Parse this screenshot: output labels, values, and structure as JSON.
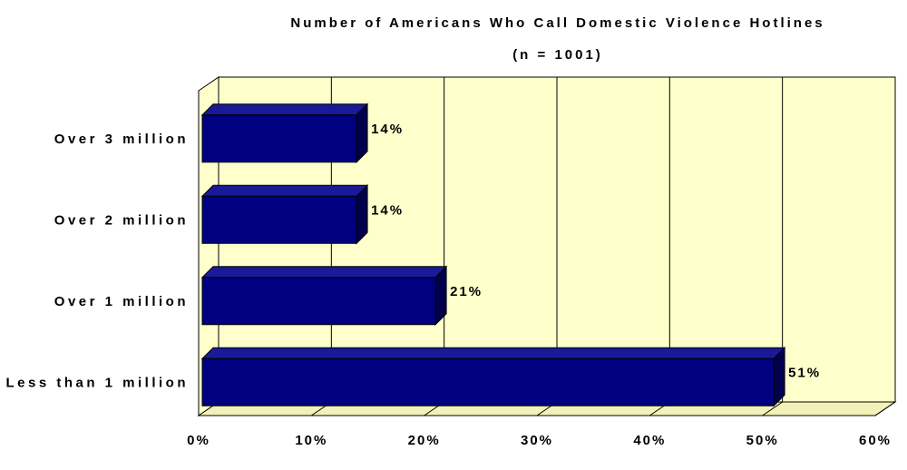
{
  "chart_data": {
    "type": "bar",
    "orientation": "horizontal",
    "title": "Number of Americans Who Call Domestic Violence Hotlines",
    "subtitle": "(n = 1001)",
    "categories": [
      "Over 3 million",
      "Over 2 million",
      "Over 1 million",
      "Less than 1 million"
    ],
    "values": [
      14,
      14,
      21,
      51
    ],
    "data_labels": [
      "14%",
      "14%",
      "21%",
      "51%"
    ],
    "xlim": [
      0,
      60
    ],
    "x_ticks": [
      0,
      10,
      20,
      30,
      40,
      50,
      60
    ],
    "x_tick_labels": [
      "0%",
      "10%",
      "20%",
      "30%",
      "40%",
      "50%",
      "60%"
    ],
    "grid": true,
    "legend": "none",
    "style": "3d",
    "colors": {
      "bar_face": "#000080",
      "bar_top": "#1a1a99",
      "bar_side": "#00004d",
      "plot_background": "#ffffcc",
      "floor": "#f2f2b8"
    }
  }
}
